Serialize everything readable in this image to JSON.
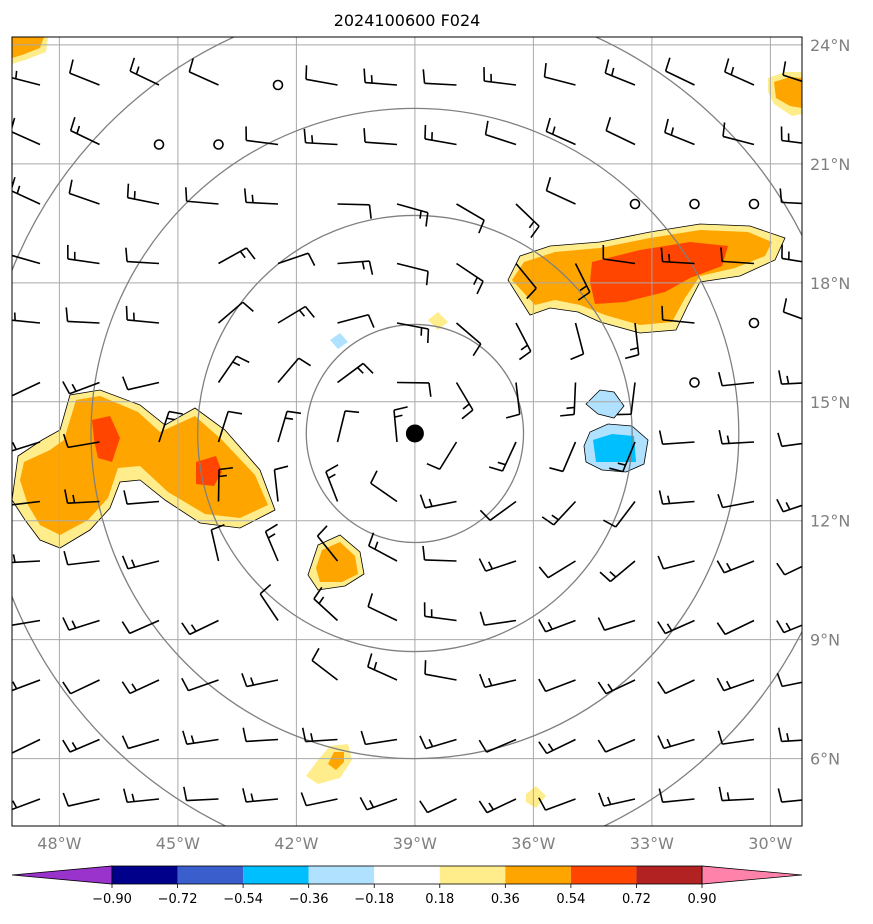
{
  "title": "2024100600 F024",
  "map": {
    "lon_range": [
      -49.2,
      -29.2
    ],
    "lat_range": [
      4.3,
      24.2
    ],
    "lon_ticks": [
      -48,
      -45,
      -42,
      -39,
      -36,
      -33,
      -30
    ],
    "lon_labels": [
      "48°W",
      "45°W",
      "42°W",
      "39°W",
      "36°W",
      "33°W",
      "30°W"
    ],
    "lat_ticks": [
      6,
      9,
      12,
      15,
      18,
      21,
      24
    ],
    "lat_labels": [
      "6°N",
      "9°N",
      "12°N",
      "15°N",
      "18°N",
      "21°N",
      "24°N"
    ],
    "center": {
      "lon": -39.0,
      "lat": 14.2
    },
    "range_rings_deg": [
      2.75,
      5.5,
      8.2,
      11.0
    ]
  },
  "colorbar": {
    "colors": [
      "#9933cc",
      "#00008b",
      "#3a5fcd",
      "#00bfff",
      "#b0e2ff",
      "#ffffff",
      "#ffec8b",
      "#ffa500",
      "#ff4500",
      "#b22222",
      "#ff82ab"
    ],
    "tick_labels": [
      "−0.90",
      "−0.72",
      "−0.54",
      "−0.36",
      "−0.18",
      "0.18",
      "0.36",
      "0.54",
      "0.72",
      "0.90"
    ]
  },
  "colors": {
    "grid": "#a9a9a9",
    "rings": "#808080",
    "wind": "#000000"
  }
}
